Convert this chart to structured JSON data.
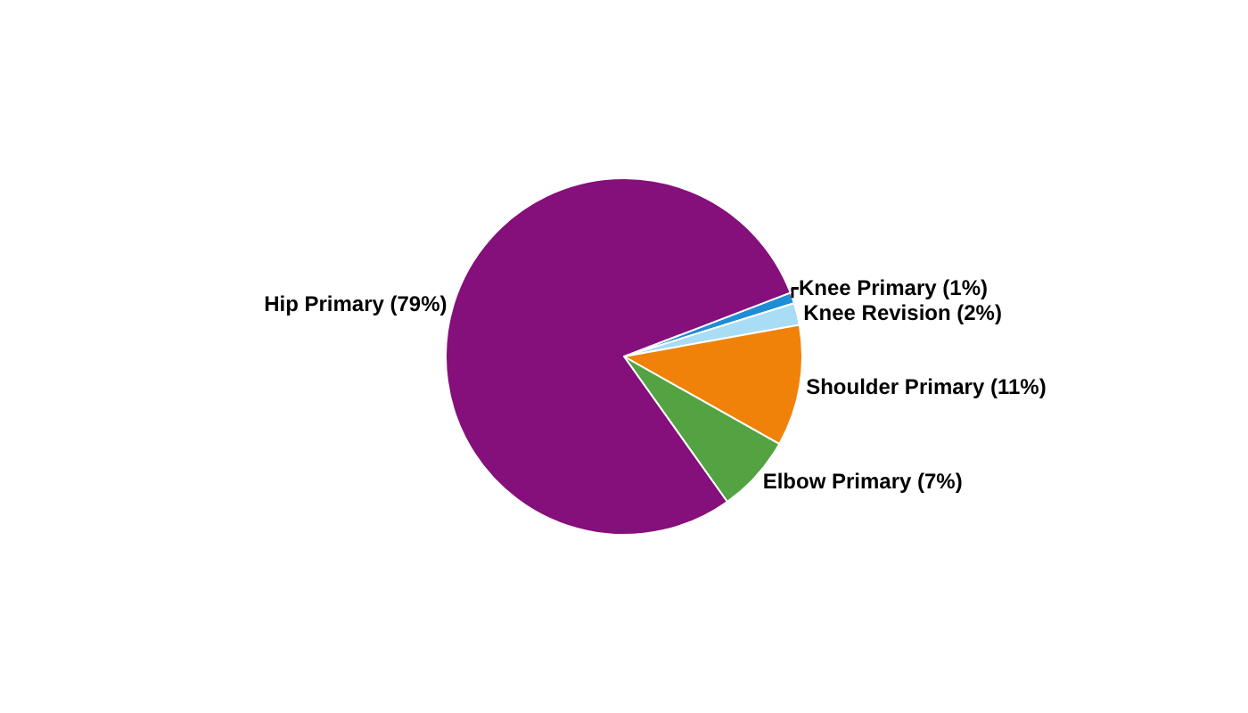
{
  "chart_data": {
    "type": "pie",
    "categories": [
      "Knee Primary",
      "Knee Revision",
      "Shoulder Primary",
      "Elbow Primary",
      "Hip Primary"
    ],
    "values": [
      1,
      2,
      11,
      7,
      79
    ],
    "value_labels": [
      "(1%)",
      "(2%)",
      "(11%)",
      "(7%)",
      "(79%)"
    ],
    "colors": [
      "#1f8dd6",
      "#a9dcf5",
      "#f0820a",
      "#53a343",
      "#850f7b"
    ],
    "legend": false
  }
}
